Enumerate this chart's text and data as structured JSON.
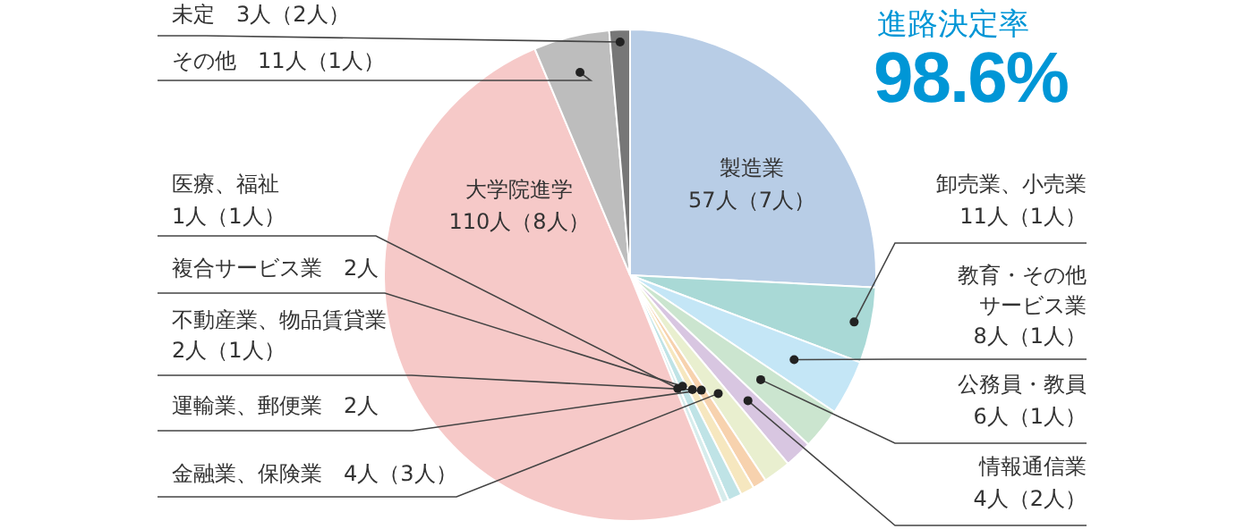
{
  "chart_data": {
    "type": "pie",
    "title": "進路決定率",
    "subtitle": "98.6%",
    "categories": [
      "製造業",
      "卸売業、小売業",
      "教育・その他サービス業",
      "公務員・教員",
      "情報通信業",
      "金融業、保険業",
      "運輸業、郵便業",
      "不動産業、物品賃貸業",
      "複合サービス業",
      "医療、福祉",
      "大学院進学",
      "その他",
      "未定"
    ],
    "values": [
      57,
      11,
      8,
      6,
      4,
      4,
      2,
      2,
      2,
      1,
      110,
      11,
      3
    ],
    "value_labels": [
      "57人（7人）",
      "11人（1人）",
      "8人（1人）",
      "6人（1人）",
      "4人（2人）",
      "4人（3人）",
      "2人",
      "2人（1人）",
      "2人",
      "1人（1人）",
      "110人（8人）",
      "11人（1人）",
      "3人（2人）"
    ],
    "colors": [
      "#b8cde6",
      "#a9d9d6",
      "#c4e6f6",
      "#cbe5cf",
      "#d8c6e1",
      "#e9efcf",
      "#f7d2ae",
      "#f6e7bf",
      "#bfe3e6",
      "#d6ecec",
      "#f6c9c8",
      "#bdbdbd",
      "#777777"
    ],
    "legend": false
  }
}
